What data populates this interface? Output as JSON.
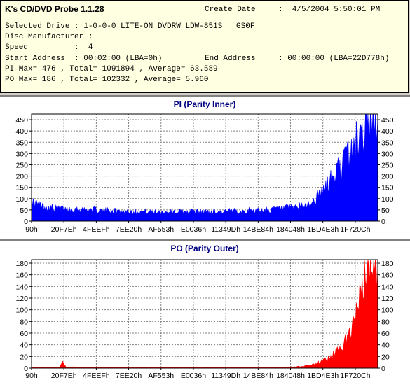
{
  "header": {
    "app_title": "K's CD/DVD Probe 1.1.28",
    "create_date_label": "Create Date",
    "create_date_value": ":  4/5/2004 5:50:01 PM",
    "selected_drive_line": "Selected Drive : 1-0-0-0 LITE-ON DVDRW LDW-851S   GS0F",
    "disc_manufacturer_line": "Disc Manufacturer :",
    "speed_line": "Speed          :  4",
    "start_address_line": "Start Address  : 00:02:00 (LBA=0h)",
    "end_address_label": "End Address",
    "end_address_value": ": 00:00:00 (LBA=22D778h)",
    "pi_summary": "PI Max= 476 , Total= 1091894 , Average= 63.589",
    "po_summary": "PO Max= 186 , Total= 102332 , Average= 5.960"
  },
  "colors": {
    "pi_series": "#0000ff",
    "po_series": "#ff0000",
    "chart_title": "#000080",
    "grid": "#808080",
    "info_background": "#ffffe1"
  },
  "chart_data": [
    {
      "type": "area",
      "title": "PI (Parity Inner)",
      "x_tick_labels": [
        "90h",
        "20F7Eh",
        "4FEEFh",
        "7EE20h",
        "AF553h",
        "E0036h",
        "11349Dh",
        "14BE84h",
        "184048h",
        "1BD4E3h",
        "1F720Ch"
      ],
      "y_ticks": [
        0,
        50,
        100,
        150,
        200,
        250,
        300,
        350,
        400,
        450
      ],
      "ylim": [
        0,
        475
      ],
      "grid": true,
      "series": [
        {
          "color": "#0000ff",
          "x": [
            0,
            0.02,
            0.05,
            0.1,
            0.15,
            0.2,
            0.25,
            0.3,
            0.35,
            0.4,
            0.45,
            0.5,
            0.55,
            0.6,
            0.65,
            0.7,
            0.75,
            0.78,
            0.8,
            0.82,
            0.84,
            0.86,
            0.88,
            0.9,
            0.92,
            0.94,
            0.95,
            0.96,
            0.97,
            0.98,
            0.99,
            1.0
          ],
          "values": [
            85,
            75,
            60,
            55,
            52,
            48,
            45,
            43,
            42,
            42,
            43,
            42,
            43,
            45,
            48,
            52,
            58,
            65,
            75,
            95,
            130,
            170,
            215,
            260,
            305,
            355,
            390,
            420,
            450,
            470,
            465,
            476
          ]
        }
      ]
    },
    {
      "type": "area",
      "title": "PO (Parity Outer)",
      "x_tick_labels": [
        "90h",
        "20F7Eh",
        "4FEEFh",
        "7EE20h",
        "AF553h",
        "E0036h",
        "11349Dh",
        "14BE84h",
        "184048h",
        "1BD4E3h",
        "1F720Ch"
      ],
      "y_ticks": [
        0,
        20,
        40,
        60,
        80,
        100,
        120,
        140,
        160,
        180
      ],
      "ylim": [
        0,
        186
      ],
      "grid": true,
      "series": [
        {
          "color": "#ff0000",
          "x": [
            0,
            0.08,
            0.09,
            0.1,
            0.2,
            0.3,
            0.4,
            0.5,
            0.6,
            0.7,
            0.75,
            0.78,
            0.8,
            0.82,
            0.84,
            0.86,
            0.88,
            0.9,
            0.92,
            0.94,
            0.95,
            0.96,
            0.97,
            0.98,
            0.99,
            1.0
          ],
          "values": [
            1,
            1,
            10,
            2,
            1,
            1,
            1,
            1,
            1,
            1,
            2,
            3,
            5,
            8,
            12,
            18,
            28,
            40,
            60,
            95,
            120,
            150,
            175,
            186,
            160,
            165
          ]
        }
      ]
    }
  ]
}
